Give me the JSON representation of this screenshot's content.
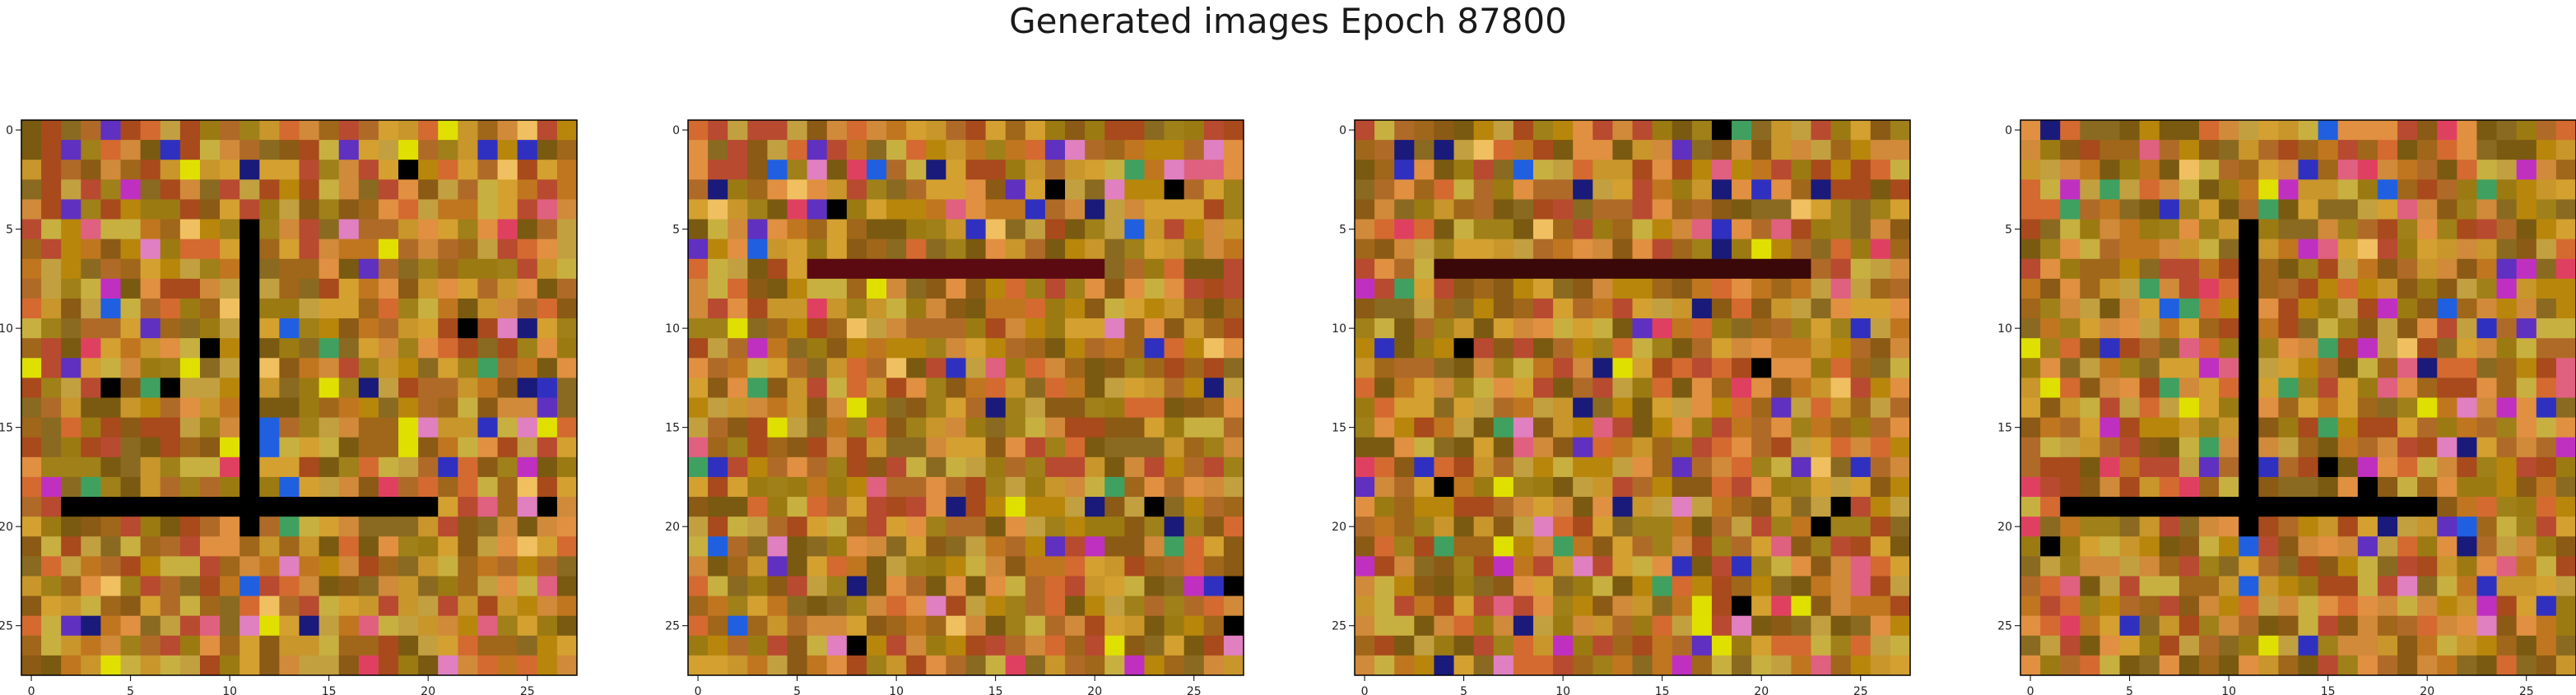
{
  "title": "Generated images Epoch 87800",
  "chart_data": {
    "type": "heatmap",
    "title": "Generated images Epoch 87800",
    "grid_size": 28,
    "panels": [
      {
        "name": "",
        "x_ticks": [
          0,
          5,
          10,
          15,
          20,
          25
        ],
        "y_ticks": [
          0,
          5,
          10,
          15,
          20,
          25
        ],
        "xlim": [
          -0.5,
          27.5
        ],
        "ylim": [
          27.5,
          -0.5
        ]
      },
      {
        "name": "",
        "x_ticks": [
          0,
          5,
          10,
          15,
          20,
          25
        ],
        "y_ticks": [
          0,
          5,
          10,
          15,
          20,
          25
        ],
        "xlim": [
          -0.5,
          27.5
        ],
        "ylim": [
          27.5,
          -0.5
        ]
      },
      {
        "name": "",
        "x_ticks": [
          0,
          5,
          10,
          15,
          20,
          25
        ],
        "y_ticks": [
          0,
          5,
          10,
          15,
          20,
          25
        ],
        "xlim": [
          -0.5,
          27.5
        ],
        "ylim": [
          27.5,
          -0.5
        ]
      },
      {
        "name": "",
        "x_ticks": [
          0,
          5,
          10,
          15,
          20,
          25
        ],
        "y_ticks": [
          0,
          5,
          10,
          15,
          20,
          25
        ],
        "xlim": [
          -0.5,
          27.5
        ],
        "ylim": [
          27.5,
          -0.5
        ]
      }
    ],
    "palette": [
      "#b8860b",
      "#c8962a",
      "#a0661a",
      "#d4a030",
      "#8b5a14",
      "#c0761e",
      "#b06a28",
      "#9c7a12",
      "#d08a3a",
      "#a84a1c",
      "#c2a040",
      "#7a5a10",
      "#d46a30",
      "#b84a30",
      "#e09040",
      "#8a6a20",
      "#c8b040",
      "#a08018"
    ],
    "accent_colors": [
      "#000000",
      "#1a1a7a",
      "#3030c0",
      "#e0e000",
      "#e04060",
      "#c030c0",
      "#6030c0",
      "#40a060",
      "#e06080",
      "#f0c060",
      "#2060e0",
      "#e080c0"
    ],
    "grid": false
  }
}
